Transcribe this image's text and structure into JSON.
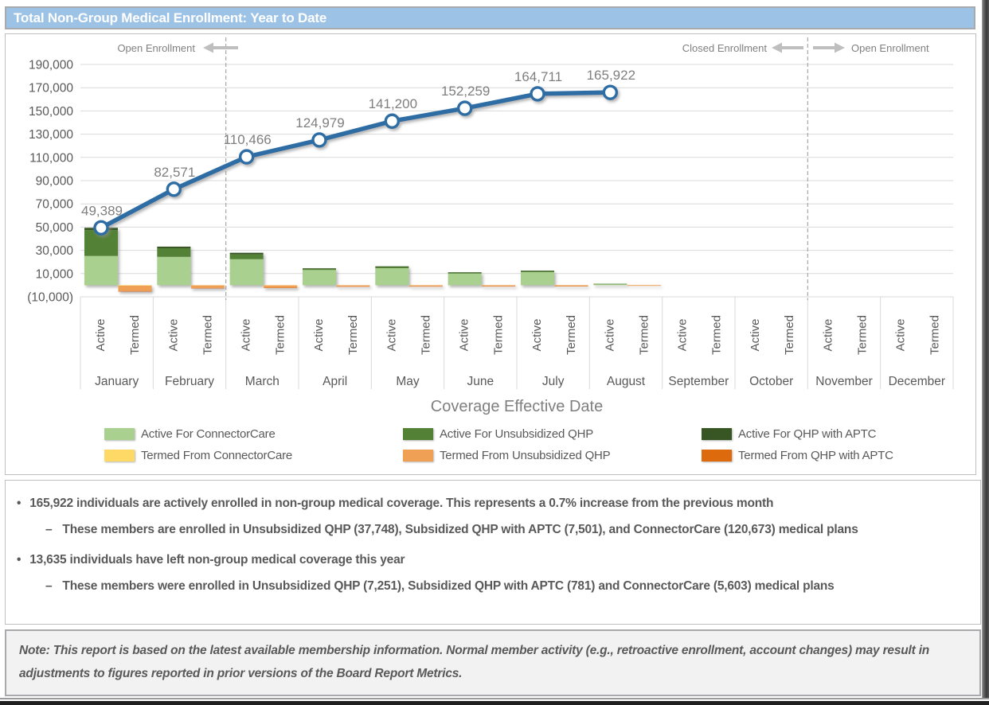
{
  "title_bar": {
    "title": "Total Non-Group Medical Enrollment: Year to Date"
  },
  "chart_data": {
    "type": "combo-stacked-bar-line",
    "title": "Total Non-Group Medical Enrollment: Year to Date",
    "xlabel": "Coverage Effective Date",
    "categories": [
      "January",
      "February",
      "March",
      "April",
      "May",
      "June",
      "July",
      "August",
      "September",
      "October",
      "November",
      "December"
    ],
    "sub_categories": [
      "Active",
      "Termed"
    ],
    "y_axis": {
      "min": -10000,
      "max": 190000,
      "tick_interval": 20000,
      "tick_labels": [
        "190,000",
        "170,000",
        "150,000",
        "130,000",
        "110,000",
        "90,000",
        "70,000",
        "50,000",
        "30,000",
        "10,000",
        "(10,000)"
      ]
    },
    "annotations": {
      "open_enrollment_left": {
        "label": "Open Enrollment",
        "arrow": "left"
      },
      "closed_enrollment": {
        "label": "Closed Enrollment",
        "arrow": "left"
      },
      "open_enrollment_right": {
        "label": "Open Enrollment",
        "arrow": "right"
      },
      "dashed_line_boundaries": [
        "February|March",
        "October|November"
      ]
    },
    "line_series": {
      "name": "Total Non-Group Medical Enrollment",
      "color": "#2E6DA4",
      "values": [
        49389,
        82571,
        110466,
        124979,
        141200,
        152259,
        164711,
        165922,
        null,
        null,
        null,
        null
      ],
      "labels": [
        "49,389",
        "82,571",
        "110,466",
        "124,979",
        "141,200",
        "152,259",
        "164,711",
        "165,922",
        "",
        "",
        "",
        ""
      ]
    },
    "bar_series": [
      {
        "name": "Active For ConnectorCare",
        "color": "#A9D08E",
        "values": [
          25200,
          24400,
          22400,
          13100,
          14650,
          10000,
          11250,
          1100,
          0,
          0,
          0,
          0
        ]
      },
      {
        "name": "Active For Unsubsidized QHP",
        "color": "#538135",
        "values": [
          22200,
          7400,
          4100,
          1263,
          1420,
          959,
          1100,
          111,
          0,
          0,
          0,
          0
        ]
      },
      {
        "name": "Active For QHP with APTC",
        "color": "#375623",
        "values": [
          1989,
          1382,
          1395,
          150,
          151,
          100,
          102,
          0,
          0,
          0,
          0,
          0
        ]
      },
      {
        "name": "Termed From ConnectorCare",
        "color": "#FFD966",
        "values": [
          -400,
          -200,
          -200,
          -100,
          -100,
          -80,
          -80,
          -20,
          0,
          0,
          0,
          0
        ]
      },
      {
        "name": "Termed From Unsubsidized QHP",
        "color": "#F0A054",
        "values": [
          -4700,
          -2200,
          -1900,
          -900,
          -800,
          -740,
          -640,
          -160,
          0,
          0,
          0,
          0
        ]
      },
      {
        "name": "Termed From QHP with APTC",
        "color": "#DD6B0D",
        "values": [
          -400,
          -200,
          -200,
          -100,
          -100,
          -80,
          -80,
          -20,
          0,
          0,
          0,
          0
        ]
      }
    ],
    "legend_position": "bottom",
    "grid": "horizontal"
  },
  "summary": {
    "items": [
      {
        "marker": "•",
        "text": "165,922 individuals are actively enrolled in non-group medical coverage. This represents a 0.7% increase from the previous month"
      },
      {
        "marker": "–",
        "text": "These members are enrolled in Unsubsidized QHP (37,748), Subsidized QHP with APTC (7,501), and ConnectorCare (120,673) medical plans"
      },
      {
        "marker": "•",
        "text": "13,635 individuals have left non-group medical coverage this year"
      },
      {
        "marker": "–",
        "text": "These members were enrolled in Unsubsidized QHP (7,251), Subsidized QHP with APTC (781) and ConnectorCare (5,603) medical plans"
      }
    ]
  },
  "note": {
    "text": "Note: This report is based on the latest available membership information. Normal member activity (e.g., retroactive enrollment, account changes) may result in adjustments to figures reported in prior versions of the Board Report Metrics."
  }
}
